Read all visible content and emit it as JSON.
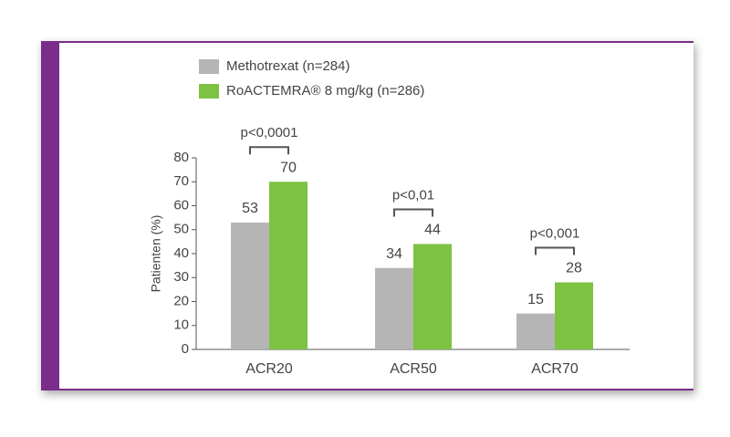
{
  "chart_data": {
    "type": "bar",
    "y_label": "Patienten (%)",
    "categories": [
      "ACR20",
      "ACR50",
      "ACR70"
    ],
    "series": [
      {
        "name": "Methotrexat (n=284)",
        "color": "#b5b5b5",
        "values": [
          53,
          34,
          15
        ]
      },
      {
        "name": "RoACTEMRA® 8 mg/kg (n=286)",
        "color": "#7dc242",
        "values": [
          70,
          44,
          28
        ]
      }
    ],
    "annotations": [
      "p<0,0001",
      "p<0,01",
      "p<0,001"
    ],
    "ylim": [
      0,
      80
    ],
    "yticks": [
      0,
      10,
      20,
      30,
      40,
      50,
      60,
      70,
      80
    ]
  }
}
